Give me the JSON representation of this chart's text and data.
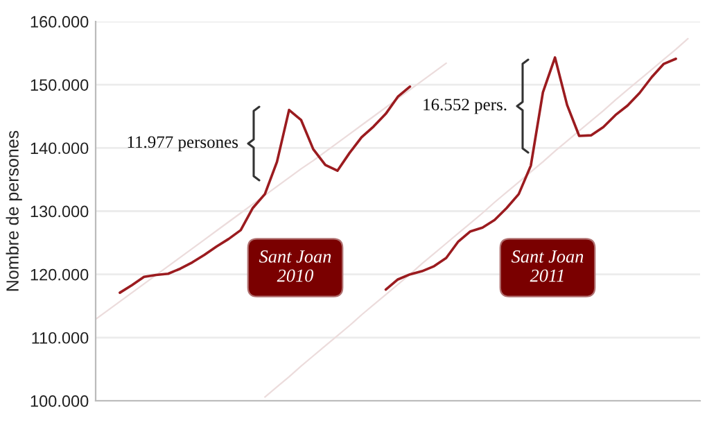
{
  "chart_data": {
    "type": "line",
    "ylabel": "Nombre de persones",
    "categories": [
      null,
      null,
      null,
      null,
      null,
      null,
      null,
      null,
      null,
      null,
      null,
      null,
      null,
      null,
      null,
      null,
      null,
      null,
      null,
      null,
      null,
      null,
      null,
      null,
      null,
      null,
      null,
      null,
      null,
      null,
      null,
      null,
      null,
      null,
      null,
      null,
      null,
      null,
      null,
      null,
      null,
      null,
      null,
      null,
      null,
      null,
      null,
      null,
      null,
      null
    ],
    "ylim": [
      100000,
      160000
    ],
    "yticks": [
      {
        "value": 100000,
        "label": "100.000"
      },
      {
        "value": 110000,
        "label": "110.000"
      },
      {
        "value": 120000,
        "label": "120.000"
      },
      {
        "value": 130000,
        "label": "130.000"
      },
      {
        "value": 140000,
        "label": "140.000"
      },
      {
        "value": 150000,
        "label": "150.000"
      },
      {
        "value": 160000,
        "label": "160.000"
      }
    ],
    "tick_labels": "y",
    "grid": "y",
    "legend": false,
    "marker": "none",
    "line_style": "solid",
    "series": [
      {
        "color": "#9b1b1f",
        "values": [
          null,
          null,
          117100,
          118300,
          119600,
          119900,
          120100,
          120900,
          121900,
          123100,
          124400,
          125600,
          127000,
          130500,
          132700,
          137800,
          146000,
          144400,
          139800,
          137300,
          136400,
          139200,
          141700,
          143400,
          145400,
          148100,
          149700,
          null,
          null,
          null,
          null,
          null,
          null,
          null,
          null,
          null,
          null,
          null,
          null,
          null,
          null,
          null,
          null,
          null,
          null,
          null,
          null,
          null,
          null,
          null
        ]
      },
      {
        "color": "#9b1b1f",
        "values": [
          null,
          null,
          null,
          null,
          null,
          null,
          null,
          null,
          null,
          null,
          null,
          null,
          null,
          null,
          null,
          null,
          null,
          null,
          null,
          null,
          null,
          null,
          null,
          null,
          117600,
          119200,
          120000,
          120500,
          121300,
          122600,
          125200,
          126800,
          127400,
          128600,
          130500,
          132700,
          137200,
          148800,
          154300,
          146800,
          141900,
          142000,
          143300,
          145200,
          146700,
          148700,
          151200,
          153300,
          154100,
          null
        ]
      },
      {
        "color": "#ecdcdc",
        "values": [
          112900,
          114300,
          115700,
          117100,
          118500,
          119900,
          121300,
          122700,
          124100,
          125500,
          126900,
          128300,
          129700,
          131100,
          132500,
          133900,
          135300,
          136700,
          138000,
          139400,
          140800,
          142200,
          143600,
          145000,
          146400,
          147800,
          149200,
          150600,
          152000,
          153400,
          null,
          null,
          null,
          null,
          null,
          null,
          null,
          null,
          null,
          null,
          null,
          null,
          null,
          null,
          null,
          null,
          null,
          null,
          null,
          null
        ]
      },
      {
        "color": "#ecdcdc",
        "values": [
          null,
          null,
          null,
          null,
          null,
          null,
          null,
          null,
          null,
          null,
          null,
          null,
          null,
          null,
          100600,
          102200,
          103800,
          105500,
          107100,
          108700,
          110300,
          111900,
          113600,
          115200,
          116800,
          118400,
          120000,
          121700,
          123300,
          124900,
          126500,
          128100,
          129700,
          131400,
          133000,
          134600,
          136200,
          137800,
          139500,
          141100,
          142700,
          144300,
          145900,
          147600,
          149200,
          150800,
          152400,
          154000,
          155600,
          157300
        ]
      }
    ],
    "annotations": [
      "11.977 persones",
      "16.552 pers.",
      "Sant Joan\n2010",
      "Sant Joan\n2011"
    ]
  }
}
